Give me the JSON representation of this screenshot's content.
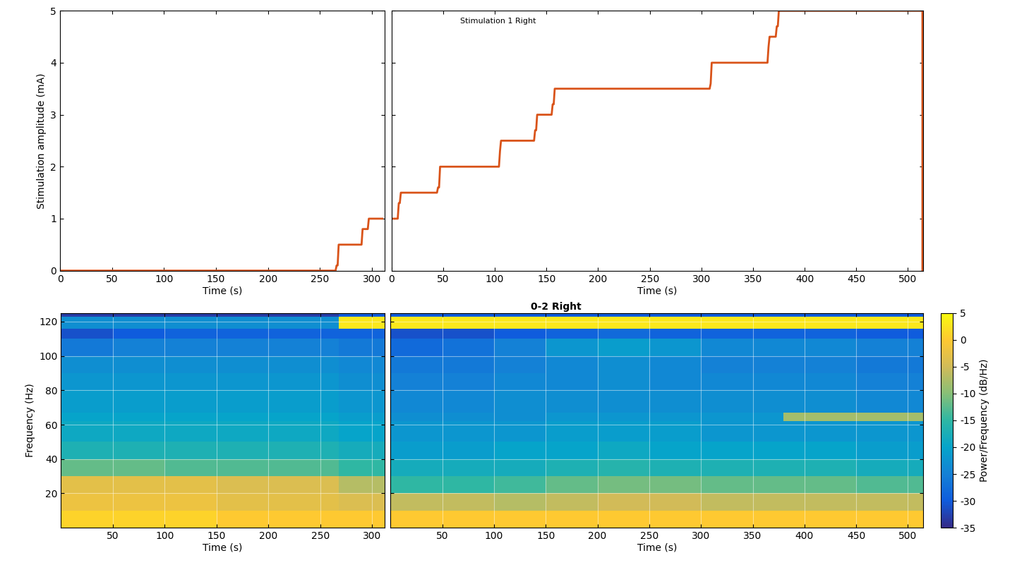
{
  "chart_data": [
    {
      "type": "line",
      "xlabel": "Time (s)",
      "ylabel": "Stimulation amplitude (mA)",
      "xlim": [
        0,
        312
      ],
      "xticks": [
        0,
        50,
        100,
        150,
        200,
        250,
        300
      ],
      "ylim": [
        0,
        5
      ],
      "yticks": [
        0,
        1,
        2,
        3,
        4,
        5
      ],
      "grid": false,
      "color": "#d95319",
      "x": [
        0,
        265,
        266,
        267,
        268,
        290,
        291,
        292,
        296,
        297,
        310
      ],
      "values": [
        0,
        0,
        0.1,
        0.1,
        0.5,
        0.5,
        0.8,
        0.8,
        0.8,
        1,
        1
      ]
    },
    {
      "type": "line",
      "title": "Stimulation 1 Right",
      "xlabel": "Time (s)",
      "xlim": [
        0,
        515
      ],
      "xticks": [
        0,
        50,
        100,
        150,
        200,
        250,
        300,
        350,
        400,
        450,
        500
      ],
      "ylim": [
        0,
        5
      ],
      "yticks": [
        0,
        1,
        2,
        3,
        4,
        5
      ],
      "grid": false,
      "tick_labels": "x",
      "color": "#d95319",
      "x": [
        0,
        6,
        7,
        8,
        9,
        10,
        44,
        45,
        46,
        47,
        104,
        105,
        106,
        138,
        139,
        140,
        141,
        142,
        155,
        156,
        157,
        158,
        308,
        309,
        310,
        364,
        365,
        366,
        367,
        372,
        373,
        374,
        375,
        376,
        514,
        514
      ],
      "values": [
        1,
        1,
        1.3,
        1.3,
        1.5,
        1.5,
        1.5,
        1.6,
        1.6,
        2,
        2,
        2.3,
        2.5,
        2.5,
        2.7,
        2.7,
        3,
        3,
        3,
        3.2,
        3.2,
        3.5,
        3.5,
        3.6,
        4,
        4,
        4.3,
        4.5,
        4.5,
        4.5,
        4.7,
        4.7,
        5,
        5,
        5,
        0
      ]
    },
    {
      "type": "heatmap",
      "xlabel": "Time (s)",
      "ylabel": "Frequency (Hz)",
      "xlim": [
        0,
        312
      ],
      "xticks": [
        50,
        100,
        150,
        200,
        250,
        300
      ],
      "ylim": [
        0,
        125
      ],
      "yticks": [
        20,
        40,
        60,
        80,
        100,
        120
      ],
      "grid": true,
      "x_edges": [
        0,
        50,
        100,
        150,
        200,
        268,
        312
      ],
      "y_edges": [
        0,
        10,
        20,
        30,
        40,
        50,
        62,
        67,
        80,
        90,
        100,
        110,
        116,
        123,
        125
      ],
      "cells": [
        [
          1,
          1,
          1,
          0,
          0,
          0
        ],
        [
          -2,
          -2,
          -2,
          -3,
          -3,
          -4
        ],
        [
          -3,
          -3,
          -3,
          -4,
          -4,
          -7
        ],
        [
          -12,
          -12,
          -13,
          -13,
          -13,
          -15
        ],
        [
          -17,
          -17,
          -17,
          -17,
          -17,
          -18
        ],
        [
          -19,
          -19,
          -19,
          -19,
          -19,
          -20
        ],
        [
          -20,
          -20,
          -20,
          -20,
          -20,
          -21
        ],
        [
          -21,
          -21,
          -21,
          -21,
          -21,
          -22
        ],
        [
          -22,
          -22,
          -22,
          -22,
          -22,
          -23
        ],
        [
          -23,
          -23,
          -23,
          -23,
          -23,
          -24
        ],
        [
          -26,
          -25,
          -25,
          -25,
          -25,
          -26
        ],
        [
          -31,
          -30,
          -29,
          -29,
          -29,
          -29
        ],
        [
          -23,
          -23,
          -23,
          -23,
          -23,
          3
        ],
        [
          -33,
          -33,
          -33,
          -33,
          -33,
          -30
        ]
      ]
    },
    {
      "type": "heatmap",
      "title": "0-2 Right",
      "xlabel": "Time (s)",
      "xlim": [
        0,
        515
      ],
      "xticks": [
        50,
        100,
        150,
        200,
        250,
        300,
        350,
        400,
        450,
        500
      ],
      "ylim": [
        0,
        125
      ],
      "yticks": [
        20,
        40,
        60,
        80,
        100,
        120
      ],
      "grid": true,
      "tick_labels": "x",
      "x_edges": [
        0,
        50,
        100,
        150,
        200,
        250,
        300,
        380,
        450,
        515
      ],
      "y_edges": [
        0,
        10,
        20,
        30,
        40,
        50,
        62,
        67,
        80,
        90,
        100,
        110,
        116,
        123,
        125
      ],
      "cells": [
        [
          0,
          0,
          0,
          0,
          0,
          0,
          0,
          0,
          0
        ],
        [
          -6,
          -6,
          -7,
          -6,
          -5,
          -5,
          -6,
          -6,
          -6
        ],
        [
          -15,
          -15,
          -14,
          -12,
          -11,
          -11,
          -12,
          -12,
          -13
        ],
        [
          -18,
          -18,
          -18,
          -17,
          -16,
          -17,
          -17,
          -17,
          -18
        ],
        [
          -21,
          -21,
          -20,
          -20,
          -19,
          -20,
          -20,
          -20,
          -21
        ],
        [
          -22,
          -22,
          -22,
          -21,
          -21,
          -21,
          -22,
          -22,
          -22
        ],
        [
          -23,
          -23,
          -23,
          -22,
          -22,
          -22,
          -22,
          -8,
          -8
        ],
        [
          -24,
          -24,
          -23,
          -23,
          -23,
          -23,
          -23,
          -23,
          -24
        ],
        [
          -25,
          -25,
          -24,
          -24,
          -23,
          -24,
          -24,
          -24,
          -25
        ],
        [
          -26,
          -26,
          -25,
          -24,
          -23,
          -24,
          -25,
          -25,
          -26
        ],
        [
          -28,
          -27,
          -25,
          -22,
          -21,
          -22,
          -24,
          -24,
          -25
        ],
        [
          -31,
          -31,
          -30,
          -29,
          -28,
          -29,
          -29,
          -29,
          -30
        ],
        [
          3,
          3,
          3,
          3,
          3,
          3,
          3,
          3,
          3
        ],
        [
          -30,
          -30,
          -30,
          -30,
          -30,
          -30,
          -30,
          -30,
          -30
        ]
      ]
    }
  ],
  "colorbar": {
    "label": "Power/Frequency (dB/Hz)",
    "range": [
      -35,
      5
    ],
    "ticks": [
      -35,
      -30,
      -25,
      -20,
      -15,
      -10,
      -5,
      0,
      5
    ]
  }
}
